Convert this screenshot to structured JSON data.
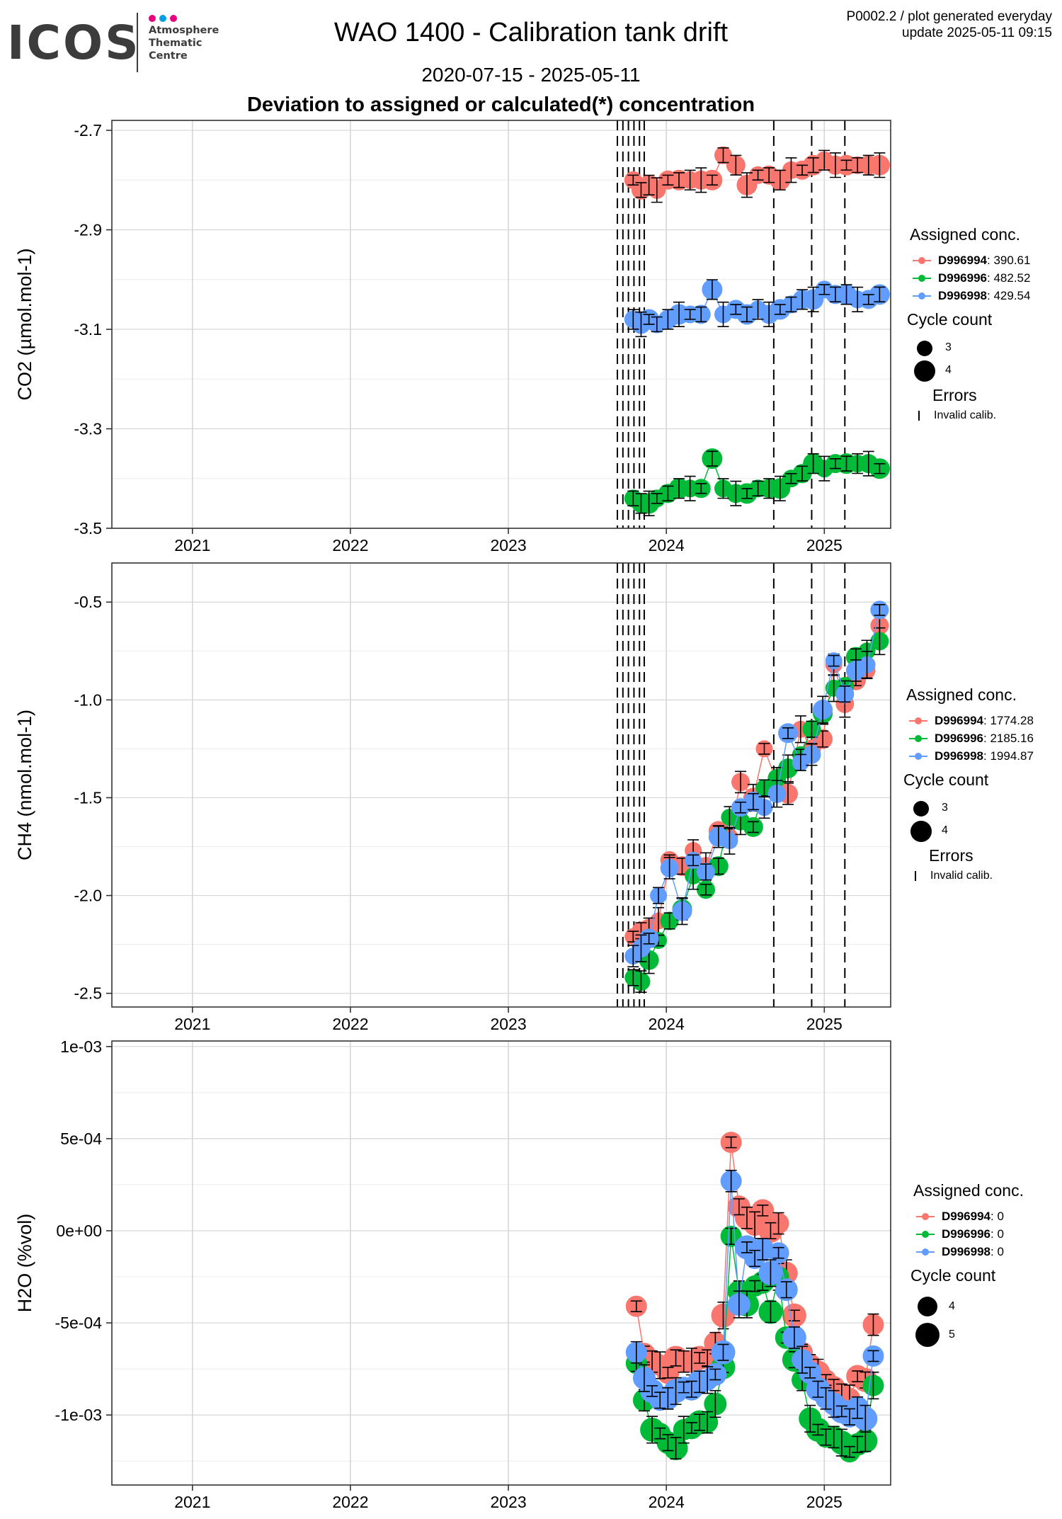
{
  "header": {
    "logo_text": "ICOS",
    "logo_sub": [
      "Atmosphere",
      "Thematic",
      "Centre"
    ],
    "title": "WAO 1400 - Calibration tank drift",
    "date_range": "2020-07-15 - 2025-05-11",
    "subtitle": "Deviation to assigned or calculated(*) concentration",
    "meta_line1": "P0002.2 / plot generated everyday",
    "meta_line2": "update  2025-05-11 09:15"
  },
  "colors": {
    "red": "#F8766D",
    "green": "#00BA38",
    "blue": "#619CFF"
  },
  "chart_data": [
    {
      "type": "scatter",
      "ylabel": "CO2 (µmol.mol-1)",
      "ylim": [
        -3.5,
        -2.68
      ],
      "yticks": [
        -2.7,
        -2.9,
        -3.1,
        -3.3,
        -3.5
      ],
      "ytick_labels": [
        "-2.7",
        "-2.9",
        "-3.1",
        "-3.3",
        "-3.5"
      ],
      "xlim": [
        2020.49,
        2025.42
      ],
      "xticks": [
        2021,
        2022,
        2023,
        2024,
        2025
      ],
      "xtick_labels": [
        "2021",
        "2022",
        "2023",
        "2024",
        "2025"
      ],
      "grid": true,
      "vlines": [
        2023.69,
        2023.725,
        2023.76,
        2023.795,
        2023.83,
        2023.86,
        2024.68,
        2024.92,
        2025.13
      ],
      "legend": {
        "title": "Assigned conc.",
        "size_title": "Cycle count",
        "sizes": [
          "3",
          "4"
        ],
        "errors_title": "Errors",
        "errors_label": "Invalid calib.",
        "entries": [
          {
            "name": "D996994",
            "value": ": 390.61"
          },
          {
            "name": "D996996",
            "value": ": 482.52"
          },
          {
            "name": "D996998",
            "value": ": 429.54"
          }
        ]
      },
      "series": [
        {
          "name": "D996994",
          "x": [
            2023.79,
            2023.84,
            2023.89,
            2023.94,
            2024.01,
            2024.08,
            2024.15,
            2024.22,
            2024.29,
            2024.36,
            2024.44,
            2024.51,
            2024.58,
            2024.65,
            2024.72,
            2024.79,
            2024.86,
            2024.93,
            2025.0,
            2025.07,
            2025.14,
            2025.21,
            2025.28,
            2025.35
          ],
          "y": [
            -2.8,
            -2.82,
            -2.81,
            -2.82,
            -2.8,
            -2.8,
            -2.8,
            -2.8,
            -2.8,
            -2.75,
            -2.77,
            -2.81,
            -2.79,
            -2.79,
            -2.8,
            -2.78,
            -2.78,
            -2.77,
            -2.76,
            -2.77,
            -2.77,
            -2.77,
            -2.77,
            -2.77
          ]
        },
        {
          "name": "D996996",
          "x": [
            2023.79,
            2023.84,
            2023.89,
            2023.94,
            2024.01,
            2024.08,
            2024.15,
            2024.22,
            2024.29,
            2024.36,
            2024.44,
            2024.51,
            2024.58,
            2024.65,
            2024.72,
            2024.79,
            2024.86,
            2024.93,
            2025.0,
            2025.07,
            2025.14,
            2025.21,
            2025.28,
            2025.35
          ],
          "y": [
            -3.44,
            -3.45,
            -3.45,
            -3.44,
            -3.43,
            -3.42,
            -3.42,
            -3.42,
            -3.36,
            -3.42,
            -3.43,
            -3.43,
            -3.42,
            -3.42,
            -3.42,
            -3.4,
            -3.39,
            -3.37,
            -3.38,
            -3.37,
            -3.37,
            -3.37,
            -3.37,
            -3.38
          ]
        },
        {
          "name": "D996998",
          "x": [
            2023.79,
            2023.84,
            2023.89,
            2023.94,
            2024.01,
            2024.08,
            2024.15,
            2024.22,
            2024.29,
            2024.36,
            2024.44,
            2024.51,
            2024.58,
            2024.65,
            2024.72,
            2024.79,
            2024.86,
            2024.93,
            2025.0,
            2025.07,
            2025.14,
            2025.21,
            2025.28,
            2025.35
          ],
          "y": [
            -3.08,
            -3.09,
            -3.08,
            -3.09,
            -3.08,
            -3.07,
            -3.07,
            -3.07,
            -3.02,
            -3.07,
            -3.06,
            -3.07,
            -3.06,
            -3.07,
            -3.06,
            -3.05,
            -3.04,
            -3.04,
            -3.02,
            -3.03,
            -3.03,
            -3.04,
            -3.04,
            -3.03
          ]
        }
      ]
    },
    {
      "type": "scatter",
      "ylabel": "CH4 (nmol.mol-1)",
      "ylim": [
        -2.57,
        -0.3
      ],
      "yticks": [
        -0.5,
        -1.0,
        -1.5,
        -2.0,
        -2.5
      ],
      "ytick_labels": [
        "-0.5",
        "-1.0",
        "-1.5",
        "-2.0",
        "-2.5"
      ],
      "xlim": [
        2020.49,
        2025.42
      ],
      "xticks": [
        2021,
        2022,
        2023,
        2024,
        2025
      ],
      "xtick_labels": [
        "2021",
        "2022",
        "2023",
        "2024",
        "2025"
      ],
      "grid": true,
      "vlines": [
        2023.69,
        2023.725,
        2023.76,
        2023.795,
        2023.83,
        2023.86,
        2024.68,
        2024.92,
        2025.13
      ],
      "legend": {
        "title": "Assigned conc.",
        "size_title": "Cycle count",
        "sizes": [
          "3",
          "4"
        ],
        "errors_title": "Errors",
        "errors_label": "Invalid calib.",
        "entries": [
          {
            "name": "D996994",
            "value": ": 1774.28"
          },
          {
            "name": "D996996",
            "value": ": 2185.16"
          },
          {
            "name": "D996998",
            "value": ": 1994.87"
          }
        ]
      },
      "series": [
        {
          "name": "D996994",
          "x": [
            2023.79,
            2023.84,
            2023.89,
            2023.95,
            2024.02,
            2024.1,
            2024.17,
            2024.25,
            2024.33,
            2024.4,
            2024.47,
            2024.55,
            2024.62,
            2024.7,
            2024.77,
            2024.85,
            2024.92,
            2024.99,
            2025.06,
            2025.13,
            2025.2,
            2025.27,
            2025.35
          ],
          "y": [
            -2.21,
            -2.18,
            -2.17,
            -2.13,
            -1.82,
            -1.85,
            -1.77,
            -1.85,
            -1.67,
            -1.7,
            -1.42,
            -1.5,
            -1.25,
            -1.42,
            -1.48,
            -1.15,
            -1.25,
            -1.2,
            -0.82,
            -1.02,
            -0.9,
            -0.85,
            -0.62
          ]
        },
        {
          "name": "D996996",
          "x": [
            2023.79,
            2023.84,
            2023.89,
            2023.95,
            2024.02,
            2024.1,
            2024.17,
            2024.25,
            2024.33,
            2024.4,
            2024.47,
            2024.55,
            2024.62,
            2024.7,
            2024.77,
            2024.85,
            2024.92,
            2024.99,
            2025.06,
            2025.13,
            2025.2,
            2025.27,
            2025.35
          ],
          "y": [
            -2.42,
            -2.44,
            -2.33,
            -2.23,
            -2.13,
            -2.07,
            -1.9,
            -1.97,
            -1.85,
            -1.6,
            -1.62,
            -1.65,
            -1.45,
            -1.4,
            -1.35,
            -1.28,
            -1.15,
            -1.07,
            -0.94,
            -0.93,
            -0.78,
            -0.75,
            -0.7
          ]
        },
        {
          "name": "D996998",
          "x": [
            2023.79,
            2023.84,
            2023.89,
            2023.95,
            2024.02,
            2024.1,
            2024.17,
            2024.25,
            2024.33,
            2024.4,
            2024.47,
            2024.55,
            2024.62,
            2024.7,
            2024.77,
            2024.85,
            2024.92,
            2024.99,
            2025.06,
            2025.13,
            2025.2,
            2025.27,
            2025.35
          ],
          "y": [
            -2.31,
            -2.27,
            -2.22,
            -2.0,
            -1.86,
            -2.08,
            -1.82,
            -1.88,
            -1.7,
            -1.72,
            -1.55,
            -1.52,
            -1.55,
            -1.48,
            -1.17,
            -1.32,
            -1.28,
            -1.05,
            -0.8,
            -0.97,
            -0.85,
            -0.82,
            -0.54
          ]
        }
      ]
    },
    {
      "type": "scatter",
      "ylabel": "H2O (%vol)",
      "ylim": [
        -0.00138,
        0.00103
      ],
      "yticks": [
        0.001,
        0.0005,
        0,
        -0.0005,
        -0.001
      ],
      "ytick_labels": [
        "1e-03",
        "5e-04",
        "0e+00",
        "-5e-04",
        "-1e-03"
      ],
      "xlim": [
        2020.49,
        2025.42
      ],
      "xticks": [
        2021,
        2022,
        2023,
        2024,
        2025
      ],
      "xtick_labels": [
        "2021",
        "2022",
        "2023",
        "2024",
        "2025"
      ],
      "grid": true,
      "vlines": [],
      "legend": {
        "title": "Assigned conc.",
        "size_title": "Cycle count",
        "sizes": [
          "4",
          "5"
        ],
        "entries": [
          {
            "name": "D996994",
            "value": ": 0"
          },
          {
            "name": "D996996",
            "value": ": 0"
          },
          {
            "name": "D996998",
            "value": ": 0"
          }
        ]
      },
      "series": [
        {
          "name": "D996994",
          "x": [
            2023.81,
            2023.86,
            2023.91,
            2023.96,
            2024.01,
            2024.06,
            2024.11,
            2024.16,
            2024.21,
            2024.26,
            2024.31,
            2024.36,
            2024.41,
            2024.46,
            2024.51,
            2024.56,
            2024.61,
            2024.66,
            2024.71,
            2024.76,
            2024.81,
            2024.86,
            2024.91,
            2024.96,
            2025.01,
            2025.06,
            2025.11,
            2025.16,
            2025.21,
            2025.26,
            2025.31
          ],
          "y": [
            -0.00041,
            -0.00067,
            -0.00071,
            -0.00073,
            -0.00077,
            -0.00069,
            -0.00071,
            -0.00071,
            -0.00069,
            -0.00069,
            -0.00061,
            -0.00046,
            0.00048,
            0.00013,
            7e-05,
            3e-05,
            0.00011,
            0.0,
            4e-05,
            -0.00023,
            -0.00046,
            -0.00066,
            -0.00073,
            -0.00077,
            -0.00081,
            -0.00085,
            -0.00089,
            -0.00091,
            -0.00079,
            -0.00081,
            -0.00051
          ]
        },
        {
          "name": "D996996",
          "x": [
            2023.81,
            2023.86,
            2023.91,
            2023.96,
            2024.01,
            2024.06,
            2024.11,
            2024.16,
            2024.21,
            2024.26,
            2024.31,
            2024.36,
            2024.41,
            2024.46,
            2024.51,
            2024.56,
            2024.61,
            2024.66,
            2024.71,
            2024.76,
            2024.81,
            2024.86,
            2024.91,
            2024.96,
            2025.01,
            2025.06,
            2025.11,
            2025.16,
            2025.21,
            2025.26,
            2025.31
          ],
          "y": [
            -0.00072,
            -0.00092,
            -0.00108,
            -0.0011,
            -0.00115,
            -0.00118,
            -0.00108,
            -0.00107,
            -0.00104,
            -0.00104,
            -0.00094,
            -0.00074,
            -3e-05,
            -0.00033,
            -0.0004,
            -0.0003,
            -0.00028,
            -0.00044,
            -0.00025,
            -0.00058,
            -0.0007,
            -0.00081,
            -0.00102,
            -0.00108,
            -0.00112,
            -0.00112,
            -0.00115,
            -0.0012,
            -0.00116,
            -0.00114,
            -0.00084
          ]
        },
        {
          "name": "D996998",
          "x": [
            2023.81,
            2023.86,
            2023.91,
            2023.96,
            2024.01,
            2024.06,
            2024.11,
            2024.16,
            2024.21,
            2024.26,
            2024.31,
            2024.36,
            2024.41,
            2024.46,
            2024.51,
            2024.56,
            2024.61,
            2024.66,
            2024.71,
            2024.76,
            2024.81,
            2024.86,
            2024.91,
            2024.96,
            2025.01,
            2025.06,
            2025.11,
            2025.16,
            2025.21,
            2025.26,
            2025.31
          ],
          "y": [
            -0.00066,
            -0.0008,
            -0.00087,
            -0.00092,
            -0.00091,
            -0.00087,
            -0.00085,
            -0.00086,
            -0.00082,
            -0.00081,
            -0.00078,
            -0.00066,
            0.00027,
            -0.0004,
            -9e-05,
            -0.00015,
            -0.0001,
            -0.00023,
            -0.00012,
            -0.00032,
            -0.00058,
            -0.0007,
            -0.00077,
            -0.00086,
            -0.00091,
            -0.00094,
            -0.00098,
            -0.00101,
            -0.00096,
            -0.00102,
            -0.00068
          ]
        }
      ]
    }
  ]
}
